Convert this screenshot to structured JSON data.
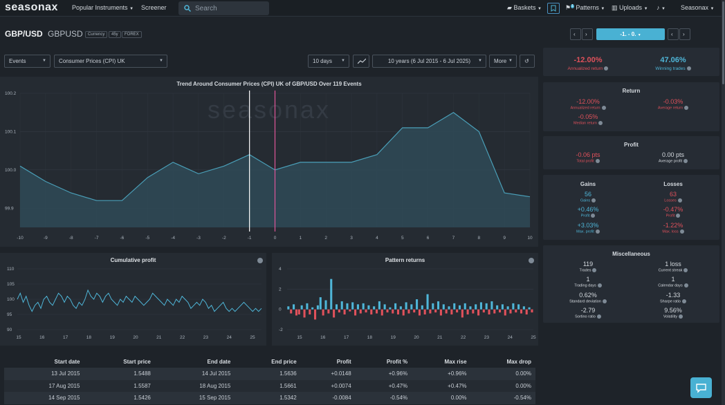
{
  "nav": {
    "logo": "seasonax",
    "popular": "Popular Instruments",
    "screener": "Screener",
    "search_placeholder": "Search",
    "baskets": "Baskets",
    "patterns": "Patterns",
    "uploads": "Uploads",
    "user": "Seasonax",
    "patterns_badge": "1"
  },
  "header": {
    "symbol": "GBP/USD",
    "ticker": "GBPUSD",
    "tags": [
      "Currency",
      "45y",
      "FOREX"
    ]
  },
  "controls": {
    "events": "Events",
    "event_name": "Consumer Prices (CPI) UK",
    "days": "10 days",
    "range": "10 years (6 Jul 2015 - 6 Jul 2025)",
    "more": "More",
    "right_range": "-1. - 0."
  },
  "top_stats": {
    "ann_value": "-12.00%",
    "ann_label": "Annualized return",
    "win_value": "47.06%",
    "win_label": "Winning trades"
  },
  "return": {
    "title": "Return",
    "ann": "-12.00%",
    "ann_l": "Annualized return",
    "avg": "-0.03%",
    "avg_l": "Average return",
    "med": "-0.05%",
    "med_l": "Median return"
  },
  "profit": {
    "title": "Profit",
    "total": "-0.06 pts",
    "total_l": "Total profit",
    "avg": "0.00 pts",
    "avg_l": "Average profit"
  },
  "gl": {
    "gains_t": "Gains",
    "losses_t": "Losses",
    "gains": "56",
    "gains_l": "Gains",
    "losses": "63",
    "losses_l": "Losses",
    "gp": "+0.46%",
    "gp_l": "Profit",
    "lp": "-0.47%",
    "lp_l": "Profit",
    "gmax": "+3.03%",
    "gmax_l": "Max. profit",
    "lmax": "-1.22%",
    "lmax_l": "Max. loss"
  },
  "misc": {
    "title": "Miscellaneous",
    "trades": "119",
    "trades_l": "Trades",
    "streak": "1 loss",
    "streak_l": "Current streak",
    "tdays": "1",
    "tdays_l": "Trading days",
    "cdays": "1",
    "cdays_l": "Calendar days",
    "sd": "0.62%",
    "sd_l": "Standard deviation",
    "sharpe": "-1.33",
    "sharpe_l": "Sharpe ratio",
    "sortino": "-2.79",
    "sortino_l": "Sortino ratio",
    "vol": "9.56%",
    "vol_l": "Volatility"
  },
  "mini": {
    "cum_title": "Cumulative profit",
    "pat_title": "Pattern returns"
  },
  "table": {
    "headers": [
      "Start date",
      "Start price",
      "End date",
      "End price",
      "Profit",
      "Profit %",
      "Max rise",
      "Max drop"
    ],
    "rows": [
      [
        "13 Jul 2015",
        "1.5488",
        "14 Jul 2015",
        "1.5636",
        "+0.0148",
        "+0.96%",
        "+0.96%",
        "0.00%"
      ],
      [
        "17 Aug 2015",
        "1.5587",
        "18 Aug 2015",
        "1.5661",
        "+0.0074",
        "+0.47%",
        "+0.47%",
        "0.00%"
      ],
      [
        "14 Sep 2015",
        "1.5426",
        "15 Sep 2015",
        "1.5342",
        "-0.0084",
        "-0.54%",
        "0.00%",
        "-0.54%"
      ]
    ]
  },
  "chart_data": [
    {
      "type": "area",
      "title": "Trend Around Consumer Prices (CPI) UK of GBP/USD Over 119 Events",
      "watermark": "seasonax",
      "x": [
        -10,
        -9,
        -8,
        -7,
        -6,
        -5,
        -4,
        -3,
        -2,
        -1,
        0,
        1,
        2,
        3,
        4,
        5,
        6,
        7,
        8,
        9,
        10
      ],
      "y": [
        100.01,
        99.97,
        99.94,
        99.92,
        99.92,
        99.98,
        100.02,
        99.99,
        100.01,
        100.04,
        100.0,
        100.02,
        100.02,
        100.02,
        100.04,
        100.11,
        100.11,
        100.15,
        100.1,
        99.94,
        99.93
      ],
      "xticks": [
        "-10",
        "-9",
        "-8",
        "-7",
        "-6",
        "-5",
        "-4",
        "-3",
        "-2",
        "-1",
        "0",
        "1",
        "2",
        "3",
        "4",
        "5",
        "6",
        "7",
        "8",
        "9",
        "10"
      ],
      "yticks": [
        "100.2",
        "100.1",
        "100.0",
        "99.9"
      ],
      "ylim": [
        99.85,
        100.2
      ]
    },
    {
      "type": "line",
      "title": "Cumulative profit",
      "yticks": [
        "110",
        "105",
        "100",
        "95",
        "90"
      ],
      "xticks": [
        "15",
        "16",
        "17",
        "18",
        "19",
        "20",
        "21",
        "22",
        "23",
        "24",
        "25"
      ],
      "ylim": [
        90,
        110
      ],
      "y": [
        100,
        102,
        99,
        101,
        98,
        96,
        98,
        99,
        97,
        100,
        101,
        99,
        98,
        100,
        102,
        101,
        99,
        101,
        100,
        98,
        97,
        99,
        98,
        100,
        103,
        101,
        100,
        102,
        101,
        99,
        101,
        102,
        100,
        99,
        98,
        100,
        99,
        101,
        100,
        99,
        101,
        100,
        99,
        98,
        99,
        100,
        102,
        101,
        100,
        99,
        98,
        100,
        99,
        98,
        100,
        99,
        101,
        100,
        99,
        97,
        98,
        99,
        98,
        100,
        99,
        97,
        98,
        96,
        97,
        98,
        99,
        97,
        96,
        97,
        96,
        97,
        98,
        99,
        98,
        97,
        96,
        97,
        96,
        97
      ]
    },
    {
      "type": "bar",
      "title": "Pattern returns",
      "yticks": [
        "4",
        "2",
        "0",
        "-2"
      ],
      "xticks": [
        "15",
        "16",
        "17",
        "18",
        "19",
        "20",
        "21",
        "22",
        "23",
        "24",
        "25"
      ],
      "ylim": [
        -2,
        4
      ],
      "values": [
        0.3,
        -0.4,
        0.5,
        -0.6,
        -0.5,
        0.4,
        -0.8,
        0.6,
        -0.5,
        0.2,
        -1.0,
        0.4,
        1.2,
        -0.6,
        0.9,
        -0.4,
        3.0,
        -0.8,
        0.5,
        -0.3,
        0.8,
        -0.5,
        0.6,
        -0.2,
        0.7,
        -0.6,
        0.5,
        -0.4,
        0.6,
        -0.3,
        0.4,
        -0.5,
        0.3,
        -0.4,
        0.8,
        -0.6,
        0.5,
        -0.3,
        0.2,
        -0.4,
        0.6,
        -0.5,
        0.3,
        -0.6,
        0.7,
        -0.4,
        0.5,
        -0.3,
        1.0,
        -0.6,
        0.4,
        -0.5,
        1.5,
        -0.4,
        0.6,
        -0.3,
        0.8,
        -0.6,
        0.5,
        -0.4,
        0.3,
        -0.5,
        0.6,
        -0.3,
        0.4,
        -0.8,
        0.6,
        -0.5,
        0.3,
        -0.4,
        0.5,
        -0.6,
        0.7,
        -0.3,
        0.6,
        -0.5,
        0.8,
        -0.4,
        0.4,
        -0.3,
        0.5,
        -0.6,
        0.3,
        -0.4,
        0.6,
        -0.3,
        0.5,
        -0.4,
        0.3,
        -0.5,
        0.2,
        -0.3
      ]
    }
  ]
}
